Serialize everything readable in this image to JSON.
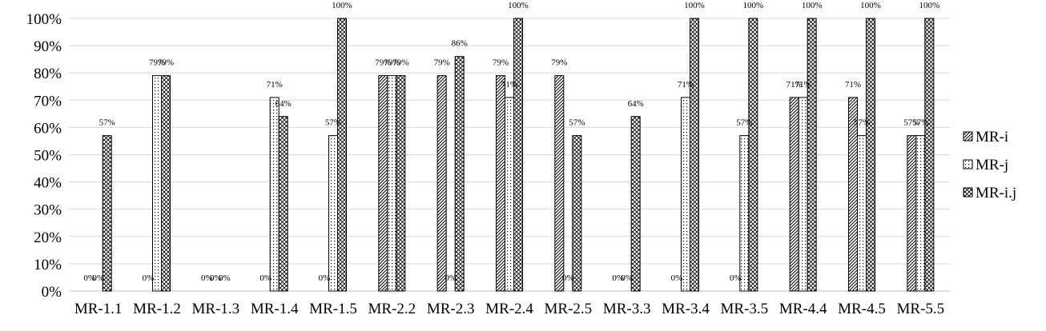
{
  "chart_data": {
    "type": "bar",
    "categories": [
      "MR-1.1",
      "MR-1.2",
      "MR-1.3",
      "MR-1.4",
      "MR-1.5",
      "MR-2.2",
      "MR-2.3",
      "MR-2.4",
      "MR-2.5",
      "MR-3.3",
      "MR-3.4",
      "MR-3.5",
      "MR-4.4",
      "MR-4.5",
      "MR-5.5"
    ],
    "series": [
      {
        "name": "MR-i",
        "pattern": "diagonal",
        "values": [
          0,
          0,
          0,
          0,
          0,
          79,
          79,
          79,
          79,
          0,
          0,
          0,
          71,
          71,
          57
        ]
      },
      {
        "name": "MR-j",
        "pattern": "dots",
        "values": [
          0,
          79,
          0,
          71,
          57,
          79,
          0,
          71,
          0,
          0,
          71,
          57,
          71,
          57,
          57
        ]
      },
      {
        "name": "MR-i.j",
        "pattern": "crosshatch",
        "values": [
          57,
          79,
          0,
          64,
          100,
          79,
          86,
          100,
          57,
          64,
          100,
          100,
          100,
          100,
          100
        ]
      }
    ],
    "data_labels": [
      [
        "0%",
        "0%",
        "57%"
      ],
      [
        "0%",
        "79%",
        "79%"
      ],
      [
        "0%",
        "0%",
        "0%"
      ],
      [
        "0%",
        "71%",
        "64%"
      ],
      [
        "0%",
        "57%",
        "100%"
      ],
      [
        "79%",
        "79%",
        "79%"
      ],
      [
        "79%",
        "0%",
        "86%"
      ],
      [
        "79%",
        "71%",
        "100%"
      ],
      [
        "79%",
        "0%",
        "57%"
      ],
      [
        "0%",
        "0%",
        "64%"
      ],
      [
        "0%",
        "71%",
        "100%"
      ],
      [
        "0%",
        "57%",
        "100%"
      ],
      [
        "71%",
        "71%",
        "100%"
      ],
      [
        "71%",
        "57%",
        "100%"
      ],
      [
        "57%",
        "57%",
        "100%"
      ]
    ],
    "y_ticks": [
      "0%",
      "10%",
      "20%",
      "30%",
      "40%",
      "50%",
      "60%",
      "70%",
      "80%",
      "90%",
      "100%"
    ],
    "ylim": [
      0,
      100
    ],
    "grid": true,
    "legend": "right",
    "title": "",
    "xlabel": "",
    "ylabel": ""
  }
}
